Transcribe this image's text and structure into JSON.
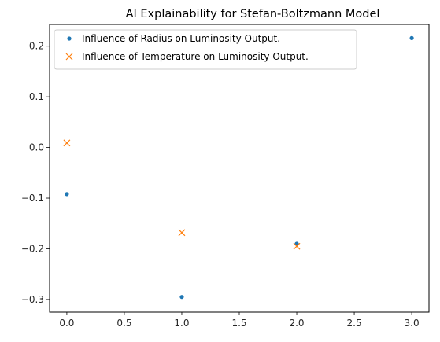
{
  "chart_data": {
    "type": "scatter",
    "title": "AI Explainability for Stefan-Boltzmann Model",
    "xlabel": "",
    "ylabel": "",
    "xlim": [
      -0.15,
      3.15
    ],
    "ylim": [
      -0.325,
      0.243
    ],
    "xticks": [
      0.0,
      0.5,
      1.0,
      1.5,
      2.0,
      2.5,
      3.0
    ],
    "xtick_labels": [
      "0.0",
      "0.5",
      "1.0",
      "1.5",
      "2.0",
      "2.5",
      "3.0"
    ],
    "yticks": [
      -0.3,
      -0.2,
      -0.1,
      0.0,
      0.1,
      0.2
    ],
    "ytick_labels": [
      "−0.3",
      "−0.2",
      "−0.1",
      "0.0",
      "0.1",
      "0.2"
    ],
    "grid": false,
    "legend_position": "top-left",
    "series": [
      {
        "name": "Influence of Radius on Luminosity Output.",
        "marker": "dot",
        "color": "#1f77b4",
        "x": [
          0,
          1,
          2,
          3
        ],
        "y": [
          -0.092,
          -0.295,
          -0.19,
          0.216
        ]
      },
      {
        "name": "Influence of Temperature on Luminosity Output.",
        "marker": "x",
        "color": "#ff7f0e",
        "x": [
          0,
          1,
          2
        ],
        "y": [
          0.009,
          -0.168,
          -0.195
        ]
      }
    ]
  }
}
